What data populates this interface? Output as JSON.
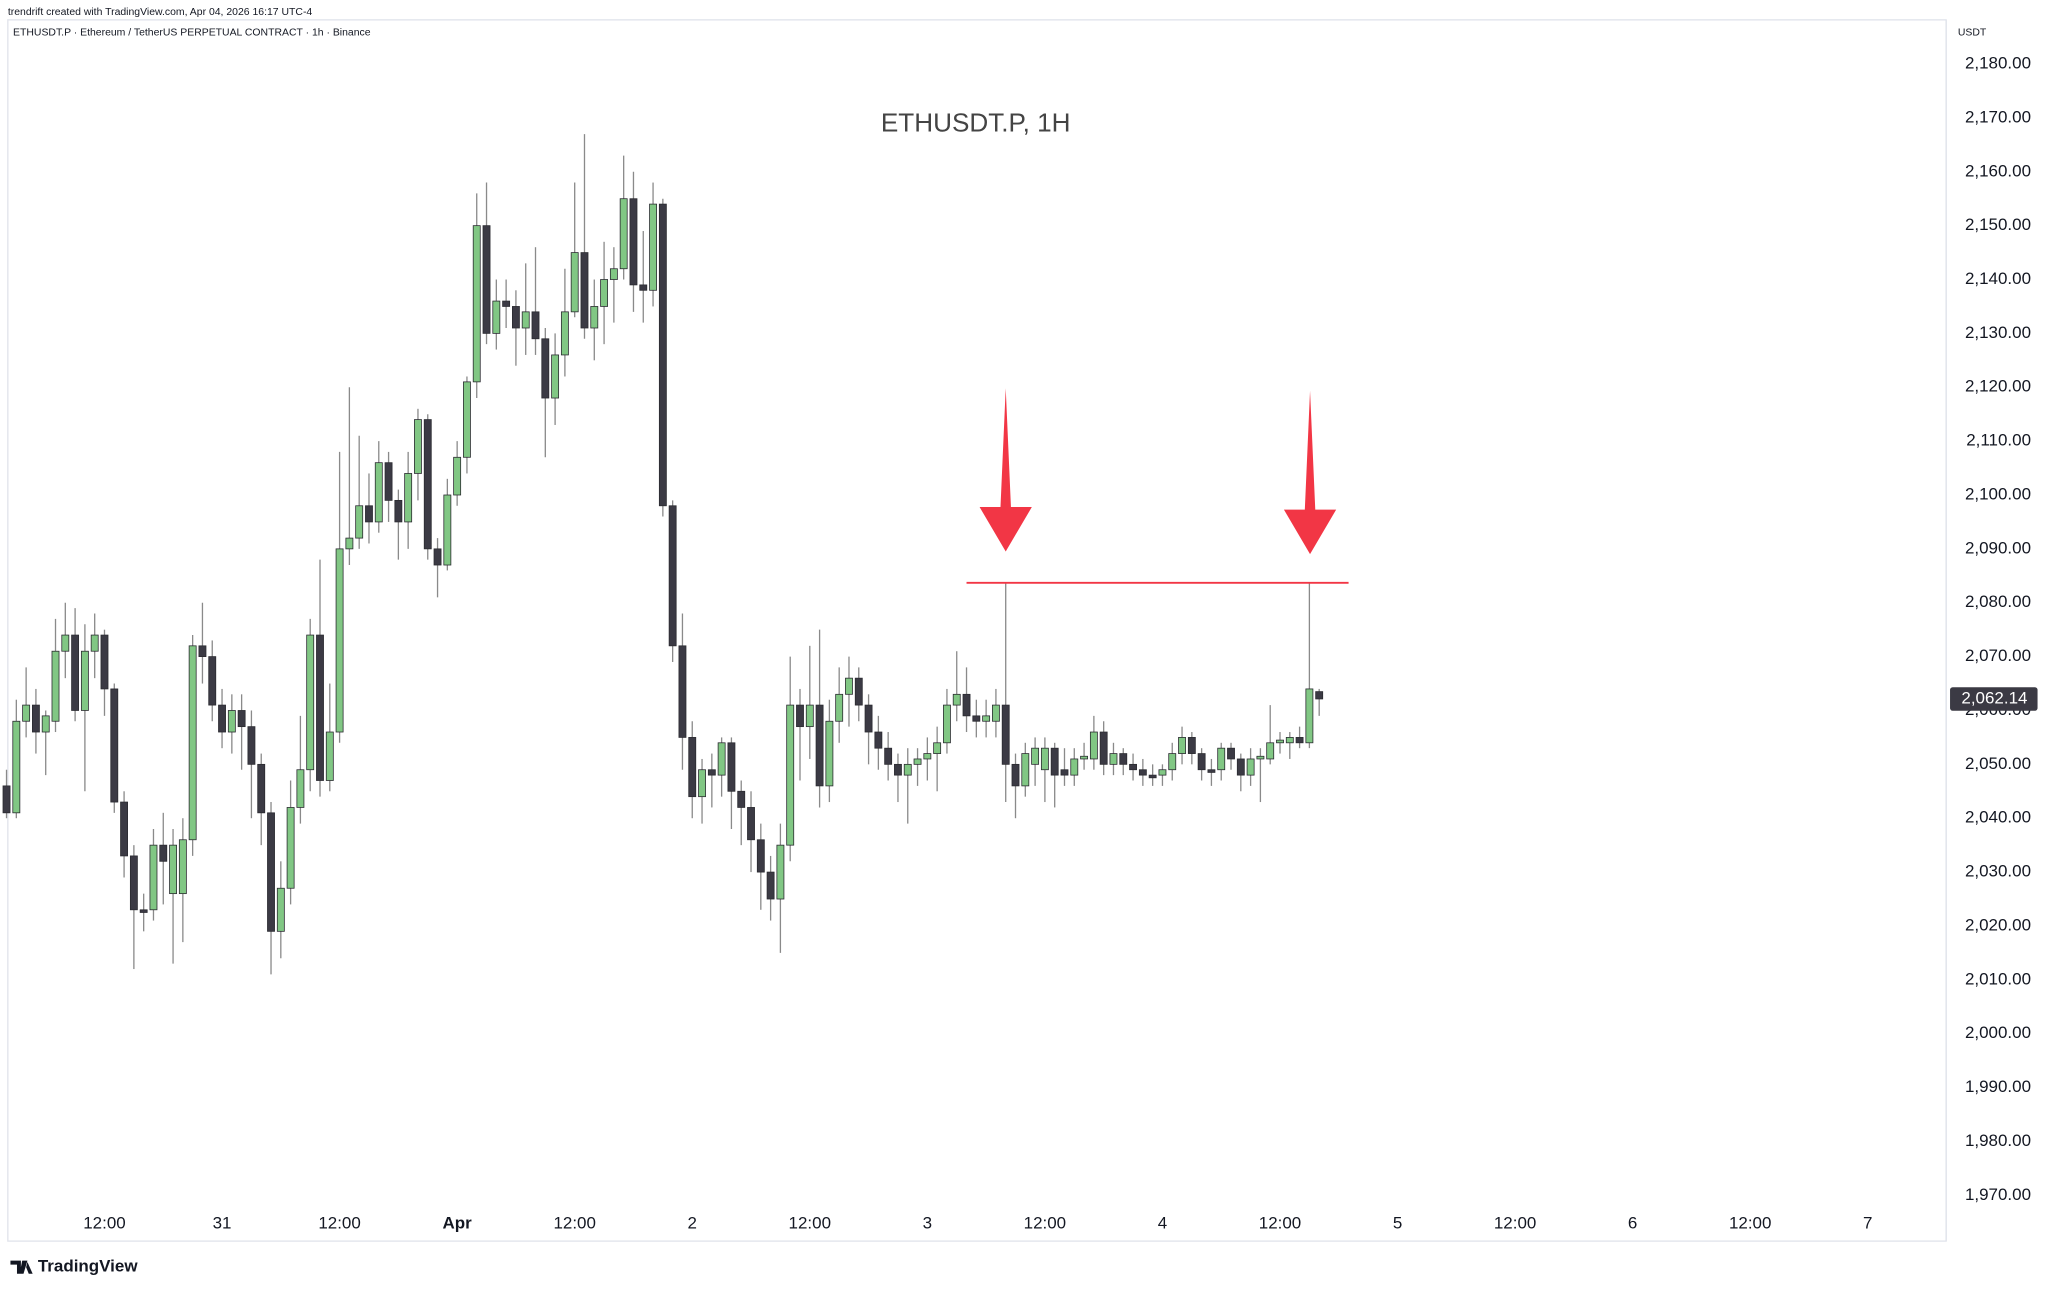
{
  "header": {
    "credit": "trendrift created with TradingView.com, Apr 04, 2026 16:17 UTC-4",
    "symbol_line": "ETHUSDT.P · Ethereum / TetherUS PERPETUAL CONTRACT · 1h · Binance"
  },
  "footer": {
    "logo": "TradingView"
  },
  "chart_data": {
    "type": "candlestick",
    "title": "ETHUSDT.P, 1H",
    "y_axis_label": "USDT",
    "up_color": "#81c784",
    "down_color": "#3b3a44",
    "wick_color": "#8a8a8a",
    "grid": false,
    "x": [
      "03-30 02:00",
      "03-30 03:00",
      "03-30 04:00",
      "03-30 05:00",
      "03-30 06:00",
      "03-30 07:00",
      "03-30 08:00",
      "03-30 09:00",
      "03-30 10:00",
      "03-30 11:00",
      "03-30 12:00",
      "03-30 13:00",
      "03-30 14:00",
      "03-30 15:00",
      "03-30 16:00",
      "03-30 17:00",
      "03-30 18:00",
      "03-30 19:00",
      "03-30 20:00",
      "03-30 21:00",
      "03-30 22:00",
      "03-30 23:00",
      "03-31 00:00",
      "03-31 01:00",
      "03-31 02:00",
      "03-31 03:00",
      "03-31 04:00",
      "03-31 05:00",
      "03-31 06:00",
      "03-31 07:00",
      "03-31 08:00",
      "03-31 09:00",
      "03-31 10:00",
      "03-31 11:00",
      "03-31 12:00",
      "03-31 13:00",
      "03-31 14:00",
      "03-31 15:00",
      "03-31 16:00",
      "03-31 17:00",
      "03-31 18:00",
      "03-31 19:00",
      "03-31 20:00",
      "03-31 21:00",
      "03-31 22:00",
      "03-31 23:00",
      "04-01 00:00",
      "04-01 01:00",
      "04-01 02:00",
      "04-01 03:00",
      "04-01 04:00",
      "04-01 05:00",
      "04-01 06:00",
      "04-01 07:00",
      "04-01 08:00",
      "04-01 09:00",
      "04-01 10:00",
      "04-01 11:00",
      "04-01 12:00",
      "04-01 13:00",
      "04-01 14:00",
      "04-01 15:00",
      "04-01 16:00",
      "04-01 17:00",
      "04-01 18:00",
      "04-01 19:00",
      "04-01 20:00",
      "04-01 21:00",
      "04-01 22:00",
      "04-01 23:00",
      "04-02 00:00",
      "04-02 01:00",
      "04-02 02:00",
      "04-02 03:00",
      "04-02 04:00",
      "04-02 05:00",
      "04-02 06:00",
      "04-02 07:00",
      "04-02 08:00",
      "04-02 09:00",
      "04-02 10:00",
      "04-02 11:00",
      "04-02 12:00",
      "04-02 13:00",
      "04-02 14:00",
      "04-02 15:00",
      "04-02 16:00",
      "04-02 17:00",
      "04-02 18:00",
      "04-02 19:00",
      "04-02 20:00",
      "04-02 21:00",
      "04-02 22:00",
      "04-02 23:00",
      "04-03 00:00",
      "04-03 01:00",
      "04-03 02:00",
      "04-03 03:00",
      "04-03 04:00",
      "04-03 05:00",
      "04-03 06:00",
      "04-03 07:00",
      "04-03 08:00",
      "04-03 09:00",
      "04-03 10:00",
      "04-03 11:00",
      "04-03 12:00",
      "04-03 13:00",
      "04-03 14:00",
      "04-03 15:00",
      "04-03 16:00",
      "04-03 17:00",
      "04-03 18:00",
      "04-03 19:00",
      "04-03 20:00",
      "04-03 21:00",
      "04-03 22:00",
      "04-03 23:00",
      "04-04 00:00",
      "04-04 01:00",
      "04-04 02:00",
      "04-04 03:00",
      "04-04 04:00",
      "04-04 05:00",
      "04-04 06:00",
      "04-04 07:00",
      "04-04 08:00",
      "04-04 09:00",
      "04-04 10:00",
      "04-04 11:00",
      "04-04 12:00",
      "04-04 13:00",
      "04-04 14:00",
      "04-04 15:00",
      "04-04 16:00"
    ],
    "open": [
      2046,
      2041,
      2058,
      2061,
      2056,
      2058,
      2071,
      2074,
      2060,
      2071,
      2074,
      2064,
      2043,
      2033,
      2023,
      2023,
      2035,
      2026,
      2026,
      2036,
      2072,
      2070,
      2061,
      2056,
      2060,
      2057,
      2050,
      2041,
      2019,
      2027,
      2042,
      2049,
      2074,
      2047,
      2056,
      2090,
      2092,
      2098,
      2095,
      2106,
      2099,
      2095,
      2104,
      2114,
      2090,
      2087,
      2100,
      2107,
      2121,
      2150,
      2130,
      2136,
      2135,
      2131,
      2134,
      2129,
      2118,
      2126,
      2134,
      2145,
      2131,
      2135,
      2140,
      2142,
      2155,
      2139,
      2138,
      2154,
      2098,
      2072,
      2055,
      2044,
      2049,
      2048,
      2054,
      2045,
      2042,
      2036,
      2030,
      2025,
      2035,
      2061,
      2057,
      2061,
      2046,
      2058,
      2063,
      2066,
      2061,
      2056,
      2053,
      2050,
      2048,
      2050,
      2051,
      2052,
      2054,
      2061,
      2063,
      2059,
      2058,
      2058,
      2061,
      2050,
      2046,
      2050,
      2049,
      2053,
      2049,
      2048,
      2051,
      2051,
      2056,
      2050,
      2052,
      2050,
      2049,
      2048,
      2048,
      2049,
      2052,
      2055,
      2052,
      2049,
      2049,
      2053,
      2051,
      2048,
      2051,
      2051,
      2054,
      2054,
      2055,
      2054,
      2063.5
    ],
    "high": [
      2049,
      2062,
      2068,
      2064,
      2060,
      2077,
      2080,
      2079,
      2076,
      2078,
      2075,
      2065,
      2045,
      2035,
      2026,
      2038,
      2041,
      2038,
      2040,
      2074,
      2080,
      2073,
      2064,
      2063,
      2063,
      2060,
      2052,
      2043,
      2032,
      2047,
      2059,
      2077,
      2088,
      2065,
      2108,
      2120,
      2111,
      2104,
      2110,
      2108,
      2101,
      2108,
      2116,
      2115,
      2092,
      2103,
      2110,
      2122,
      2156,
      2158,
      2140,
      2140,
      2138,
      2143,
      2146,
      2131,
      2130,
      2142,
      2158,
      2167,
      2140,
      2147,
      2146,
      2163,
      2160,
      2149,
      2158,
      2155,
      2099,
      2078,
      2058,
      2051,
      2052,
      2055,
      2055,
      2047,
      2045,
      2039,
      2033,
      2039,
      2070,
      2064,
      2072,
      2075,
      2062,
      2068,
      2070,
      2068,
      2063,
      2059,
      2056,
      2052,
      2053,
      2053,
      2055,
      2057,
      2064,
      2071,
      2068,
      2062,
      2062,
      2064,
      2083.7,
      2052,
      2054,
      2055,
      2055,
      2054,
      2053,
      2053,
      2054,
      2059,
      2058,
      2054,
      2053,
      2052,
      2051,
      2050,
      2050,
      2054,
      2057,
      2056,
      2053,
      2051,
      2054,
      2054,
      2052,
      2053,
      2053,
      2061,
      2056,
      2056,
      2057,
      2083.7,
      2064
    ],
    "low": [
      2040,
      2040,
      2055,
      2052,
      2048,
      2056,
      2066,
      2058,
      2045,
      2066,
      2059,
      2041,
      2029,
      2012,
      2019,
      2021,
      2024,
      2013,
      2017,
      2033,
      2065,
      2058,
      2053,
      2052,
      2049,
      2040,
      2035,
      2011,
      2014,
      2024,
      2039,
      2045,
      2044,
      2045,
      2054,
      2087,
      2090,
      2091,
      2093,
      2095,
      2088,
      2090,
      2099,
      2088,
      2081,
      2086,
      2098,
      2104,
      2118,
      2128,
      2127,
      2131,
      2124,
      2126,
      2126,
      2107,
      2113,
      2122,
      2133,
      2129,
      2125,
      2128,
      2132,
      2140,
      2134,
      2132,
      2135,
      2096,
      2069,
      2049,
      2040,
      2039,
      2042,
      2044,
      2038,
      2035,
      2030,
      2023,
      2021,
      2015,
      2032,
      2047,
      2051,
      2042,
      2043,
      2054,
      2057,
      2058,
      2050,
      2049,
      2047,
      2043,
      2039,
      2046,
      2047,
      2045,
      2052,
      2058,
      2056,
      2055,
      2055,
      2055,
      2043,
      2040,
      2044,
      2046,
      2043,
      2042,
      2046,
      2046,
      2049,
      2049,
      2048,
      2048,
      2048,
      2047,
      2046,
      2046,
      2046,
      2047,
      2050,
      2050,
      2047,
      2046,
      2047,
      2049,
      2045,
      2046,
      2043,
      2050,
      2052,
      2051,
      2053,
      2053,
      2059
    ],
    "close": [
      2041,
      2058,
      2061,
      2056,
      2059,
      2071,
      2074,
      2060,
      2071,
      2074,
      2064,
      2043,
      2033,
      2023,
      2022.5,
      2035,
      2032,
      2035,
      2036,
      2072,
      2070,
      2061,
      2056,
      2060,
      2057,
      2050,
      2041,
      2019,
      2027,
      2042,
      2049,
      2074,
      2047,
      2056,
      2090,
      2092,
      2098,
      2095,
      2106,
      2099,
      2095,
      2104,
      2114,
      2090,
      2087,
      2100,
      2107,
      2121,
      2150,
      2130,
      2136,
      2135,
      2131,
      2134,
      2129,
      2118,
      2126,
      2134,
      2145,
      2131,
      2135,
      2140,
      2142,
      2155,
      2139,
      2138,
      2154,
      2098,
      2072,
      2055,
      2044,
      2049,
      2048,
      2054,
      2045,
      2042,
      2036,
      2030,
      2025,
      2035,
      2061,
      2057,
      2061,
      2046,
      2058,
      2063,
      2066,
      2061,
      2056,
      2053,
      2050,
      2048,
      2050,
      2051,
      2052,
      2054,
      2061,
      2063,
      2059,
      2058,
      2059,
      2061,
      2050,
      2046,
      2052,
      2053,
      2053,
      2048,
      2048,
      2051,
      2051.5,
      2056,
      2050,
      2052,
      2050,
      2049,
      2048,
      2047.5,
      2049,
      2052,
      2055,
      2052,
      2049,
      2048.5,
      2053,
      2051,
      2048,
      2051,
      2051.5,
      2054,
      2054.5,
      2055,
      2054,
      2064,
      2062.14
    ],
    "last_price_label": "2,062.14",
    "level_line": {
      "value": 2083.7,
      "from": "04-03 04:00",
      "to": "04-04 19:00",
      "color": "#f23645"
    },
    "xlim": [
      "03-30 02:08",
      "04-07 08:00"
    ],
    "xticks": [
      {
        "value": "03-30 12:00",
        "label": "12:00"
      },
      {
        "value": "03-31 00:00",
        "label": "31"
      },
      {
        "value": "03-31 12:00",
        "label": "12:00"
      },
      {
        "value": "04-01 00:00",
        "label": "Apr"
      },
      {
        "value": "04-01 12:00",
        "label": "12:00"
      },
      {
        "value": "04-02 00:00",
        "label": "2"
      },
      {
        "value": "04-02 12:00",
        "label": "12:00"
      },
      {
        "value": "04-03 00:00",
        "label": "3"
      },
      {
        "value": "04-03 12:00",
        "label": "12:00"
      },
      {
        "value": "04-04 00:00",
        "label": "4"
      },
      {
        "value": "04-04 12:00",
        "label": "12:00"
      },
      {
        "value": "04-05 00:00",
        "label": "5"
      },
      {
        "value": "04-05 12:00",
        "label": "12:00"
      },
      {
        "value": "04-06 00:00",
        "label": "6"
      },
      {
        "value": "04-06 12:00",
        "label": "12:00"
      },
      {
        "value": "04-07 00:00",
        "label": "7"
      }
    ],
    "ylim": [
      1961.5,
      2188.2
    ],
    "yticks": [
      {
        "value": 1970,
        "label": "1,970.00"
      },
      {
        "value": 1980,
        "label": "1,980.00"
      },
      {
        "value": 1990,
        "label": "1,990.00"
      },
      {
        "value": 2000,
        "label": "2,000.00"
      },
      {
        "value": 2010,
        "label": "2,010.00"
      },
      {
        "value": 2020,
        "label": "2,020.00"
      },
      {
        "value": 2030,
        "label": "2,030.00"
      },
      {
        "value": 2040,
        "label": "2,040.00"
      },
      {
        "value": 2050,
        "label": "2,050.00"
      },
      {
        "value": 2060,
        "label": "2,060.00"
      },
      {
        "value": 2070,
        "label": "2,070.00"
      },
      {
        "value": 2080,
        "label": "2,080.00"
      },
      {
        "value": 2090,
        "label": "2,090.00"
      },
      {
        "value": 2100,
        "label": "2,100.00"
      },
      {
        "value": 2110,
        "label": "2,110.00"
      },
      {
        "value": 2120,
        "label": "2,120.00"
      },
      {
        "value": 2130,
        "label": "2,130.00"
      },
      {
        "value": 2140,
        "label": "2,140.00"
      },
      {
        "value": 2150,
        "label": "2,150.00"
      },
      {
        "value": 2160,
        "label": "2,160.00"
      },
      {
        "value": 2170,
        "label": "2,170.00"
      },
      {
        "value": 2180,
        "label": "2,180.00"
      }
    ]
  }
}
